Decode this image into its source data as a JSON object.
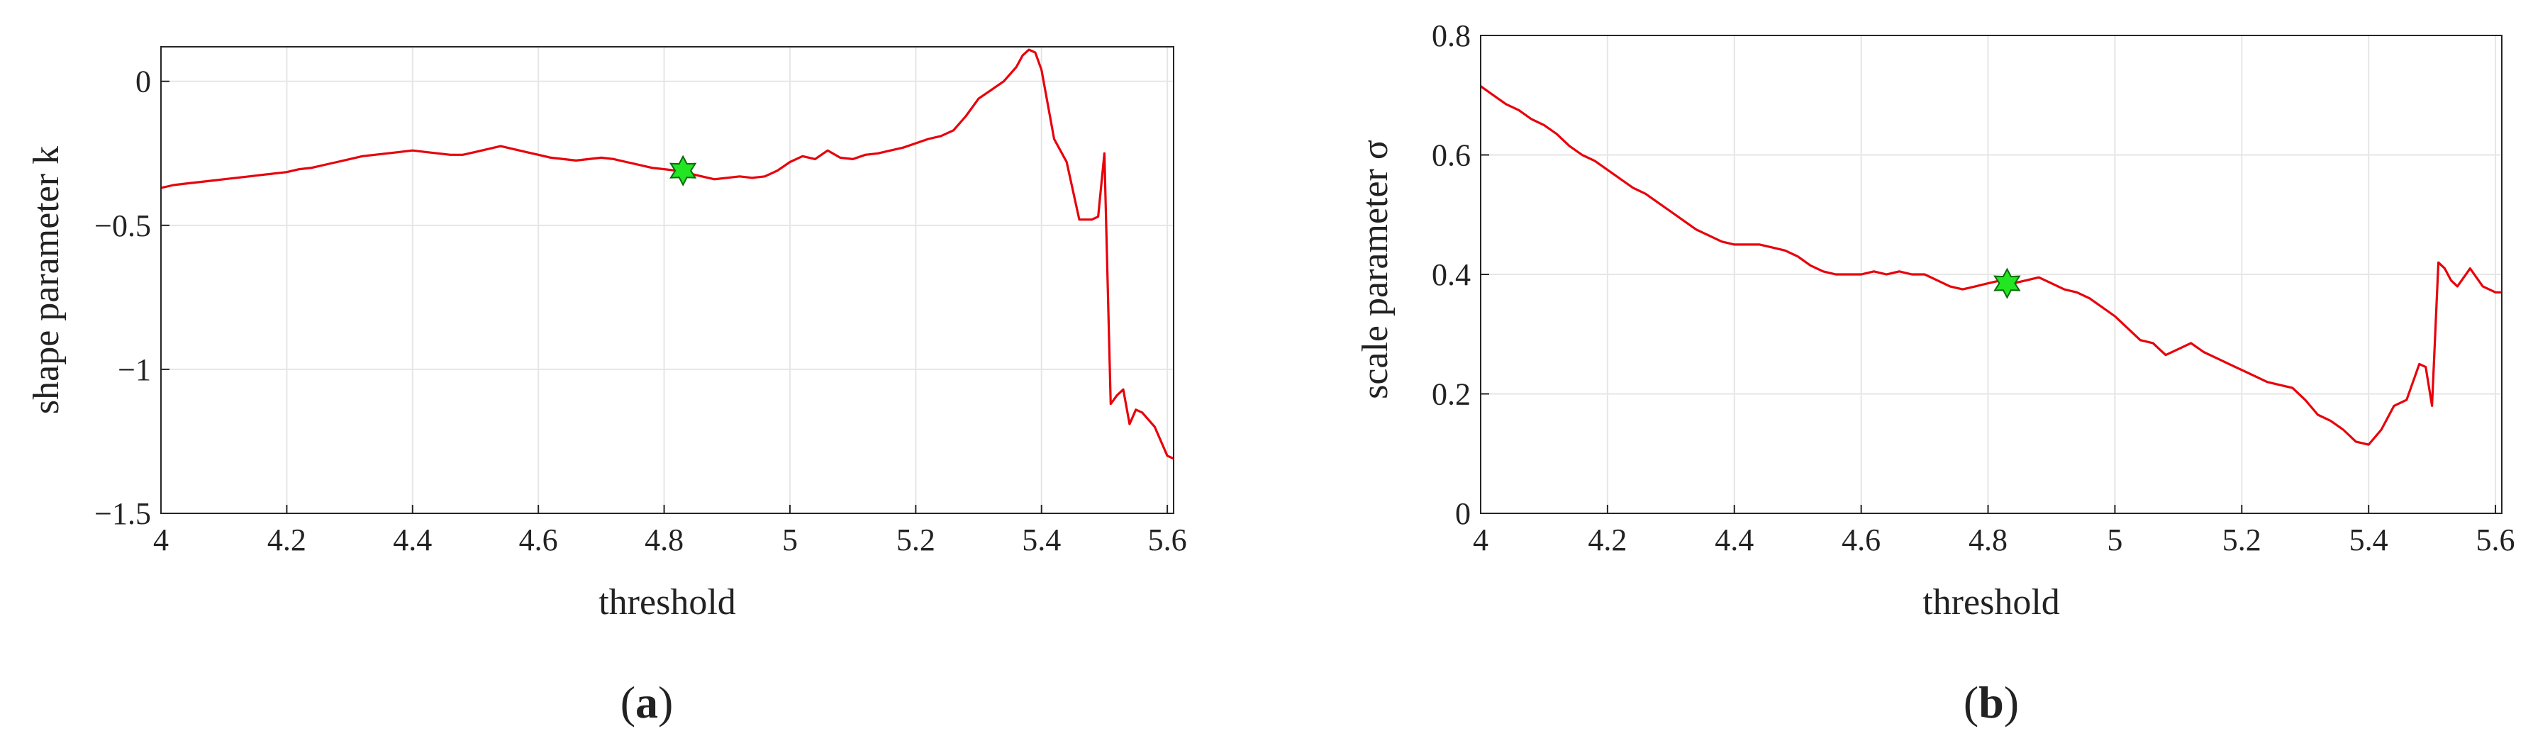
{
  "chart_data": [
    {
      "type": "line",
      "panel_label": "(a)",
      "xlabel": "threshold",
      "ylabel": "shape parameter k",
      "xlim": [
        4,
        5.61
      ],
      "ylim": [
        -1.5,
        0.12
      ],
      "xticks": [
        4,
        4.2,
        4.4,
        4.6,
        4.8,
        5,
        5.2,
        5.4,
        5.6
      ],
      "xtick_labels": [
        "4",
        "4.2",
        "4.4",
        "4.6",
        "4.8",
        "5",
        "5.2",
        "5.4",
        "5.6"
      ],
      "yticks": [
        -1.5,
        -1,
        -0.5,
        0
      ],
      "ytick_labels": [
        "−1.5",
        "−1",
        "−0.5",
        "0"
      ],
      "grid": true,
      "line_color": "#e8000b",
      "marker_color": "#22e622",
      "marker": {
        "x": 4.83,
        "y": -0.31
      },
      "series": [
        {
          "x": [
            4.0,
            4.02,
            4.04,
            4.06,
            4.08,
            4.1,
            4.12,
            4.14,
            4.16,
            4.18,
            4.2,
            4.22,
            4.24,
            4.26,
            4.28,
            4.3,
            4.32,
            4.34,
            4.36,
            4.38,
            4.4,
            4.42,
            4.44,
            4.46,
            4.48,
            4.5,
            4.52,
            4.54,
            4.56,
            4.58,
            4.6,
            4.62,
            4.64,
            4.66,
            4.68,
            4.7,
            4.72,
            4.74,
            4.76,
            4.78,
            4.8,
            4.82,
            4.84,
            4.86,
            4.88,
            4.9,
            4.92,
            4.94,
            4.96,
            4.98,
            5.0,
            5.02,
            5.04,
            5.06,
            5.08,
            5.1,
            5.12,
            5.14,
            5.16,
            5.18,
            5.2,
            5.22,
            5.24,
            5.26,
            5.28,
            5.3,
            5.32,
            5.34,
            5.36,
            5.37,
            5.38,
            5.39,
            5.4,
            5.42,
            5.44,
            5.46,
            5.48,
            5.49,
            5.5,
            5.51,
            5.52,
            5.53,
            5.54,
            5.55,
            5.56,
            5.58,
            5.6,
            5.61
          ],
          "y": [
            -0.37,
            -0.36,
            -0.355,
            -0.35,
            -0.345,
            -0.34,
            -0.335,
            -0.33,
            -0.325,
            -0.32,
            -0.315,
            -0.305,
            -0.3,
            -0.29,
            -0.28,
            -0.27,
            -0.26,
            -0.255,
            -0.25,
            -0.245,
            -0.24,
            -0.245,
            -0.25,
            -0.255,
            -0.255,
            -0.245,
            -0.235,
            -0.225,
            -0.235,
            -0.245,
            -0.255,
            -0.265,
            -0.27,
            -0.275,
            -0.27,
            -0.265,
            -0.27,
            -0.28,
            -0.29,
            -0.3,
            -0.305,
            -0.31,
            -0.32,
            -0.33,
            -0.34,
            -0.335,
            -0.33,
            -0.335,
            -0.33,
            -0.31,
            -0.28,
            -0.26,
            -0.27,
            -0.24,
            -0.265,
            -0.27,
            -0.255,
            -0.25,
            -0.24,
            -0.23,
            -0.215,
            -0.2,
            -0.19,
            -0.17,
            -0.12,
            -0.06,
            -0.03,
            0.0,
            0.05,
            0.09,
            0.11,
            0.1,
            0.04,
            -0.2,
            -0.28,
            -0.48,
            -0.48,
            -0.47,
            -0.25,
            -1.12,
            -1.09,
            -1.07,
            -1.19,
            -1.14,
            -1.15,
            -1.2,
            -1.3,
            -1.31
          ]
        }
      ]
    },
    {
      "type": "line",
      "panel_label": "(b)",
      "xlabel": "threshold",
      "ylabel": "scale parameter σ",
      "xlim": [
        4,
        5.61
      ],
      "ylim": [
        0,
        0.8
      ],
      "xticks": [
        4,
        4.2,
        4.4,
        4.6,
        4.8,
        5,
        5.2,
        5.4,
        5.6
      ],
      "xtick_labels": [
        "4",
        "4.2",
        "4.4",
        "4.6",
        "4.8",
        "5",
        "5.2",
        "5.4",
        "5.6"
      ],
      "yticks": [
        0,
        0.2,
        0.4,
        0.6,
        0.8
      ],
      "ytick_labels": [
        "0",
        "0.2",
        "0.4",
        "0.6",
        "0.8"
      ],
      "grid": true,
      "line_color": "#e8000b",
      "marker_color": "#22e622",
      "marker": {
        "x": 4.83,
        "y": 0.385
      },
      "series": [
        {
          "x": [
            4.0,
            4.02,
            4.04,
            4.06,
            4.08,
            4.1,
            4.12,
            4.14,
            4.16,
            4.18,
            4.2,
            4.22,
            4.24,
            4.26,
            4.28,
            4.3,
            4.32,
            4.34,
            4.36,
            4.38,
            4.4,
            4.42,
            4.44,
            4.46,
            4.48,
            4.5,
            4.52,
            4.54,
            4.56,
            4.58,
            4.6,
            4.62,
            4.64,
            4.66,
            4.68,
            4.7,
            4.72,
            4.74,
            4.76,
            4.78,
            4.8,
            4.82,
            4.84,
            4.86,
            4.88,
            4.9,
            4.92,
            4.94,
            4.96,
            4.98,
            5.0,
            5.02,
            5.04,
            5.06,
            5.08,
            5.1,
            5.12,
            5.14,
            5.16,
            5.18,
            5.2,
            5.22,
            5.24,
            5.26,
            5.28,
            5.3,
            5.32,
            5.34,
            5.36,
            5.38,
            5.4,
            5.42,
            5.44,
            5.46,
            5.48,
            5.49,
            5.5,
            5.51,
            5.52,
            5.53,
            5.54,
            5.56,
            5.58,
            5.6,
            5.61
          ],
          "y": [
            0.715,
            0.7,
            0.685,
            0.675,
            0.66,
            0.65,
            0.635,
            0.615,
            0.6,
            0.59,
            0.575,
            0.56,
            0.545,
            0.535,
            0.52,
            0.505,
            0.49,
            0.475,
            0.465,
            0.455,
            0.45,
            0.45,
            0.45,
            0.445,
            0.44,
            0.43,
            0.415,
            0.405,
            0.4,
            0.4,
            0.4,
            0.405,
            0.4,
            0.405,
            0.4,
            0.4,
            0.39,
            0.38,
            0.375,
            0.38,
            0.385,
            0.39,
            0.385,
            0.39,
            0.395,
            0.385,
            0.375,
            0.37,
            0.36,
            0.345,
            0.33,
            0.31,
            0.29,
            0.285,
            0.265,
            0.275,
            0.285,
            0.27,
            0.26,
            0.25,
            0.24,
            0.23,
            0.22,
            0.215,
            0.21,
            0.19,
            0.165,
            0.155,
            0.14,
            0.12,
            0.115,
            0.14,
            0.18,
            0.19,
            0.25,
            0.245,
            0.18,
            0.42,
            0.41,
            0.39,
            0.38,
            0.41,
            0.38,
            0.37,
            0.37
          ]
        }
      ]
    }
  ]
}
